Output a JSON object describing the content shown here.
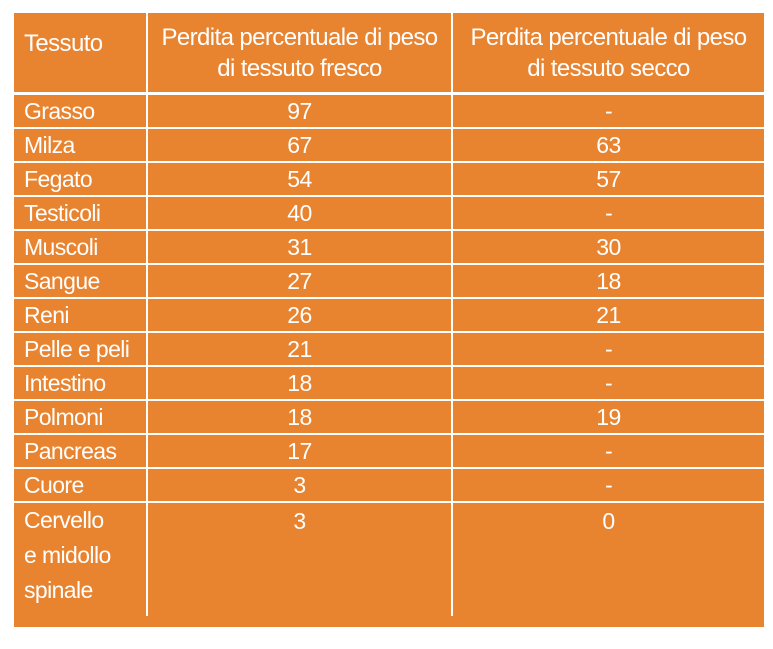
{
  "table": {
    "headers": [
      "Tessuto",
      "Perdita percentuale di peso di tessuto fresco",
      "Perdita percentuale di peso di tessuto secco"
    ],
    "header_lines": [
      [
        "Tessuto"
      ],
      [
        "Perdita percentuale di peso",
        "di tessuto fresco"
      ],
      [
        "Perdita percentuale di peso",
        "di tessuto secco"
      ]
    ],
    "rows": [
      {
        "tessuto": "Grasso",
        "fresco": "97",
        "secco": "-"
      },
      {
        "tessuto": "Milza",
        "fresco": "67",
        "secco": "63"
      },
      {
        "tessuto": "Fegato",
        "fresco": "54",
        "secco": "57"
      },
      {
        "tessuto": "Testicoli",
        "fresco": "40",
        "secco": "-"
      },
      {
        "tessuto": "Muscoli",
        "fresco": "31",
        "secco": "30"
      },
      {
        "tessuto": "Sangue",
        "fresco": "27",
        "secco": "18"
      },
      {
        "tessuto": "Reni",
        "fresco": "26",
        "secco": "21"
      },
      {
        "tessuto": "Pelle e peli",
        "fresco": "21",
        "secco": "-"
      },
      {
        "tessuto": "Intestino",
        "fresco": "18",
        "secco": "-"
      },
      {
        "tessuto": "Polmoni",
        "fresco": "18",
        "secco": "19"
      },
      {
        "tessuto": "Pancreas",
        "fresco": "17",
        "secco": "-"
      },
      {
        "tessuto": "Cuore",
        "fresco": "3",
        "secco": "-"
      },
      {
        "tessuto": "Cervello e midollo spinale",
        "fresco": "3",
        "secco": "0",
        "tessuto_lines": [
          "Cervello",
          "e midollo",
          "spinale"
        ]
      }
    ]
  },
  "colors": {
    "background": "#e8832f",
    "text": "#ffffff",
    "rules": "#ffffff"
  }
}
